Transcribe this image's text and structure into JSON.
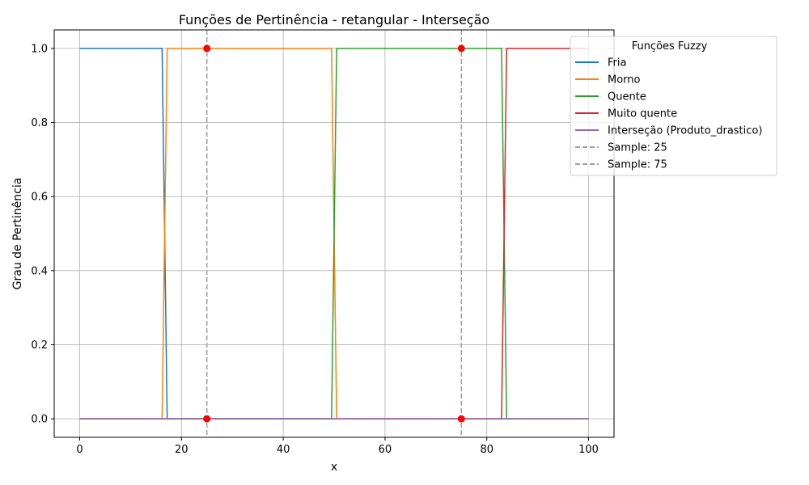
{
  "chart_data": {
    "type": "line",
    "title": "Funções de Pertinência - retangular - Interseção",
    "xlabel": "x",
    "ylabel": "Grau de Pertinência",
    "xlim": [
      -5,
      105
    ],
    "ylim": [
      -0.05,
      1.05
    ],
    "xticks": [
      "0",
      "20",
      "40",
      "60",
      "80",
      "100"
    ],
    "yticks": [
      "0.0",
      "0.2",
      "0.4",
      "0.6",
      "0.8",
      "1.0"
    ],
    "grid": true,
    "legend": {
      "title": "Funções Fuzzy",
      "placement": "top-right (partially outside plot)"
    },
    "series": [
      {
        "name": "Fria",
        "color": "#1f77b4",
        "x": [
          0,
          16.2,
          17.2,
          100
        ],
        "y": [
          1,
          1,
          0,
          0
        ]
      },
      {
        "name": "Morno",
        "color": "#ff7f0e",
        "x": [
          0,
          16.2,
          17.2,
          49.5,
          50.5,
          100
        ],
        "y": [
          0,
          0,
          1,
          1,
          0,
          0
        ]
      },
      {
        "name": "Quente",
        "color": "#2ca02c",
        "x": [
          0,
          49.5,
          50.5,
          82.9,
          83.9,
          100
        ],
        "y": [
          0,
          0,
          1,
          1,
          0,
          0
        ]
      },
      {
        "name": "Muito quente",
        "color": "#d62728",
        "x": [
          0,
          82.9,
          83.9,
          100
        ],
        "y": [
          0,
          0,
          1,
          1
        ]
      },
      {
        "name": "Interseção (Produto_drastico)",
        "color": "#9467bd",
        "x": [
          0,
          100
        ],
        "y": [
          0,
          0
        ]
      }
    ],
    "reference_lines": [
      {
        "name": "Sample: 25",
        "x": 25,
        "color": "#a0a0a0"
      },
      {
        "name": "Sample: 75",
        "x": 75,
        "color": "#a0a0a0"
      }
    ],
    "markers": {
      "color": "#ff0000",
      "points": [
        {
          "x": 25,
          "y": 1
        },
        {
          "x": 25,
          "y": 0
        },
        {
          "x": 75,
          "y": 1
        },
        {
          "x": 75,
          "y": 0
        }
      ]
    }
  }
}
